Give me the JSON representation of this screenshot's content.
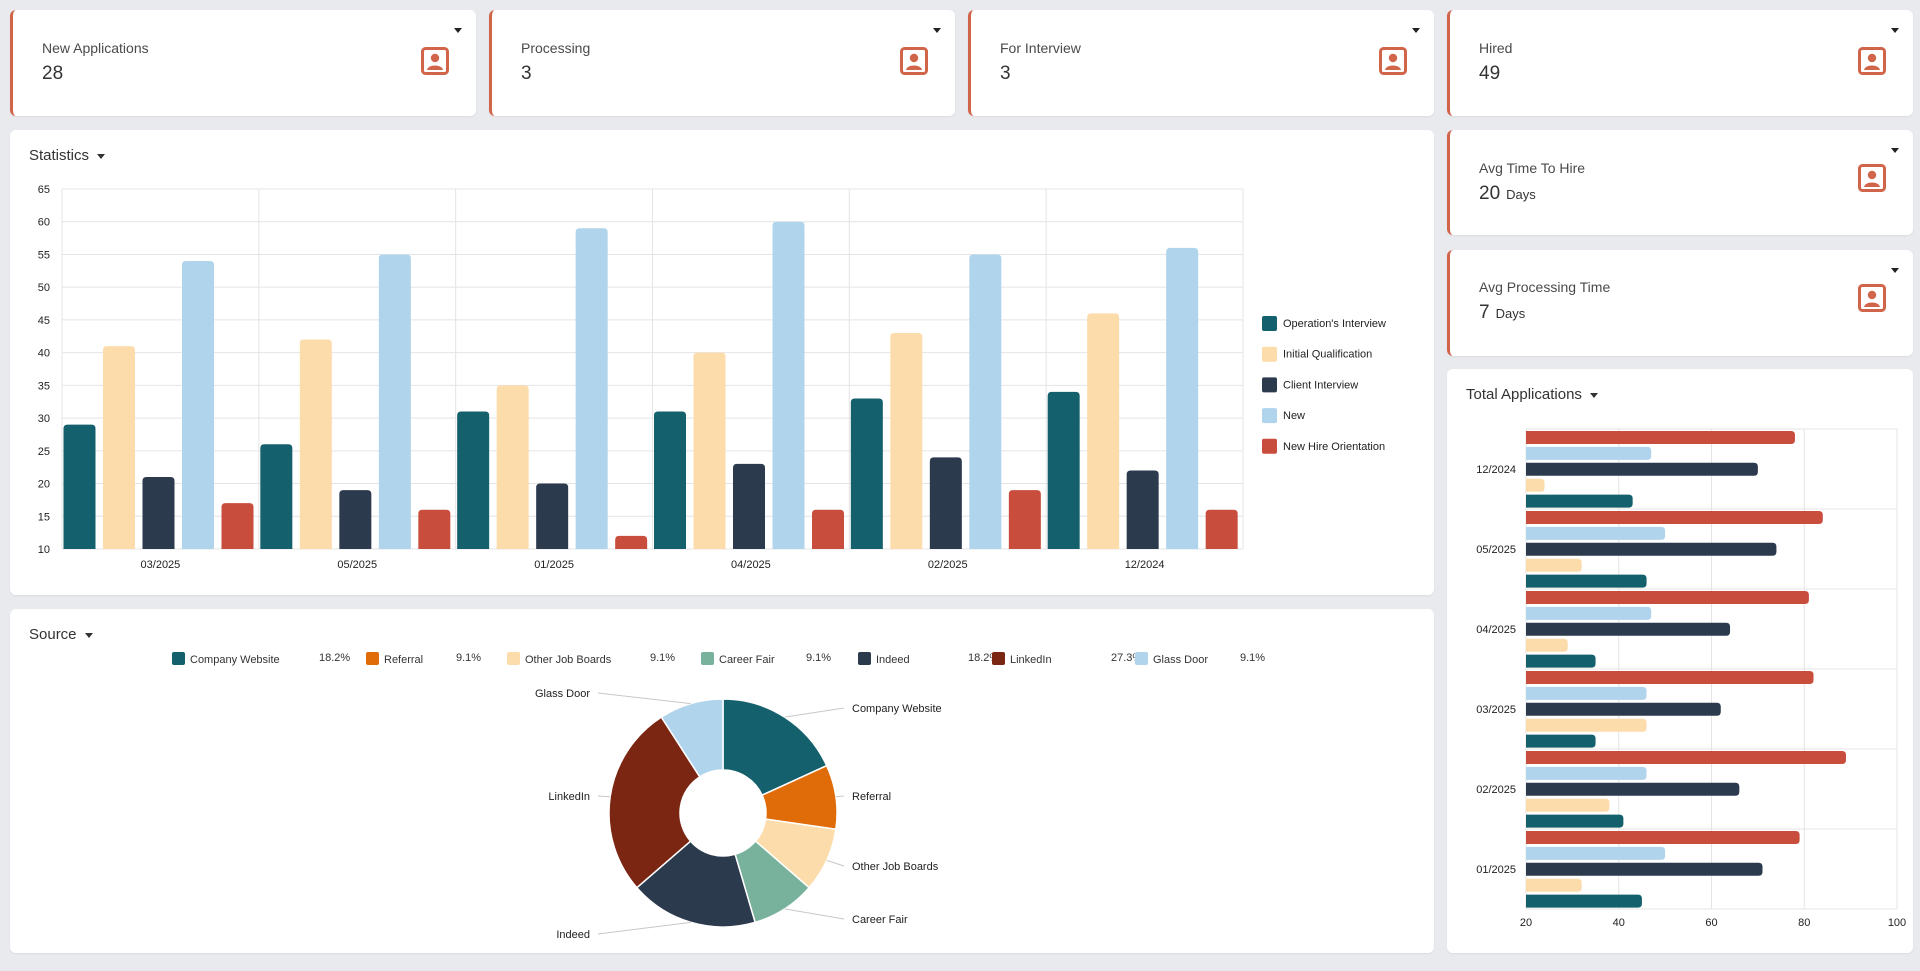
{
  "kpis": [
    {
      "label": "New Applications",
      "value": "28",
      "unit": "",
      "icon": "portrait-icon"
    },
    {
      "label": "Processing",
      "value": "3",
      "unit": "",
      "icon": "portrait-icon"
    },
    {
      "label": "For Interview",
      "value": "3",
      "unit": "",
      "icon": "portrait-icon"
    },
    {
      "label": "Hired",
      "value": "49",
      "unit": "",
      "icon": "portrait-icon"
    },
    {
      "label": "Avg Time To Hire",
      "value": "20",
      "unit": "Days",
      "icon": "portrait-icon"
    },
    {
      "label": "Avg Processing Time",
      "value": "7",
      "unit": "Days",
      "icon": "portrait-icon"
    }
  ],
  "colors": {
    "accent": "#d1654a",
    "operations": "#14606d",
    "initial": "#fddcab",
    "client": "#2c3a4e",
    "new": "#b0d4ec",
    "orientation": "#c94d3d"
  },
  "panels": {
    "statistics_title": "Statistics",
    "source_title": "Source",
    "total_title": "Total Applications"
  },
  "chart_data": [
    {
      "type": "bar",
      "title": "Statistics",
      "categories": [
        "03/2025",
        "05/2025",
        "01/2025",
        "04/2025",
        "02/2025",
        "12/2024"
      ],
      "series": [
        {
          "name": "Operation's Interview",
          "values": [
            29,
            26,
            31,
            31,
            33,
            34
          ]
        },
        {
          "name": "Initial Qualification",
          "values": [
            41,
            42,
            35,
            40,
            43,
            46
          ]
        },
        {
          "name": "Client Interview",
          "values": [
            21,
            19,
            20,
            23,
            24,
            22
          ]
        },
        {
          "name": "New",
          "values": [
            54,
            55,
            59,
            60,
            55,
            56
          ]
        },
        {
          "name": "New Hire Orientation",
          "values": [
            17,
            16,
            12,
            16,
            19,
            16
          ]
        }
      ],
      "yticks": [
        "65",
        "60",
        "55",
        "50",
        "45",
        "40",
        "35",
        "30",
        "25",
        "20",
        "15",
        "10"
      ],
      "ylim": [
        10,
        65
      ],
      "grid": true,
      "legend": "right"
    },
    {
      "type": "pie",
      "title": "Source",
      "slices": [
        {
          "name": "Company Website",
          "value": 18.2,
          "pct": "18.2%",
          "color": "#14606d"
        },
        {
          "name": "Referral",
          "value": 9.1,
          "pct": "9.1%",
          "color": "#e06b09"
        },
        {
          "name": "Other Job Boards",
          "value": 9.1,
          "pct": "9.1%",
          "color": "#fddcab"
        },
        {
          "name": "Career Fair",
          "value": 9.1,
          "pct": "9.1%",
          "color": "#79b29c"
        },
        {
          "name": "Indeed",
          "value": 18.2,
          "pct": "18.2%",
          "color": "#2c3a4e"
        },
        {
          "name": "LinkedIn",
          "value": 27.3,
          "pct": "27.3%",
          "color": "#7a2612"
        },
        {
          "name": "Glass Door",
          "value": 9.1,
          "pct": "9.1%",
          "color": "#b0d4ec"
        }
      ],
      "donut": true,
      "legend": "top"
    },
    {
      "type": "bar",
      "title": "Total Applications",
      "orientation": "horizontal",
      "categories": [
        "12/2024",
        "05/2025",
        "04/2025",
        "03/2025",
        "02/2025",
        "01/2025"
      ],
      "series": [
        {
          "name": "New Hire Orientation",
          "values": [
            78,
            84,
            81,
            82,
            89,
            79
          ]
        },
        {
          "name": "New",
          "values": [
            47,
            50,
            47,
            46,
            46,
            50
          ]
        },
        {
          "name": "Client Interview",
          "values": [
            70,
            74,
            64,
            62,
            66,
            71
          ]
        },
        {
          "name": "Initial Qualification",
          "values": [
            24,
            32,
            29,
            46,
            38,
            32
          ]
        },
        {
          "name": "Operation's Interview",
          "values": [
            43,
            46,
            35,
            35,
            41,
            45
          ]
        }
      ],
      "xticks": [
        "20",
        "40",
        "60",
        "80",
        "100"
      ],
      "xlim": [
        20,
        100
      ],
      "grid": true
    }
  ]
}
